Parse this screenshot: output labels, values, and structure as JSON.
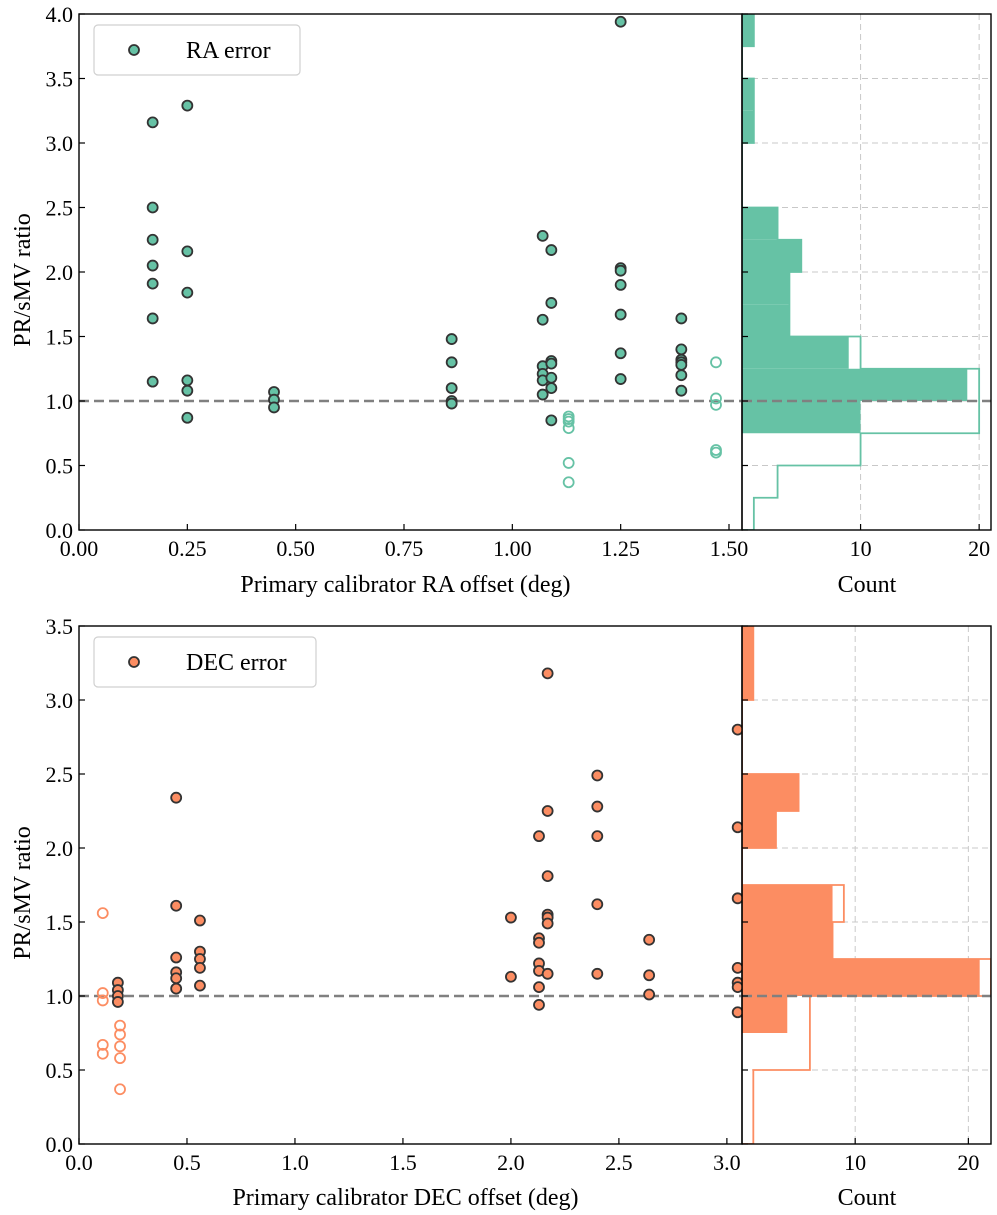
{
  "chart_data": [
    {
      "type": "scatter",
      "panel": "top",
      "xlabel": "Primary calibrator RA offset (deg)",
      "ylabel": "PR/sMV ratio",
      "xlim": [
        0.0,
        1.53
      ],
      "ylim": [
        0.0,
        4.0
      ],
      "xticks": [
        0.0,
        0.25,
        0.5,
        0.75,
        1.0,
        1.25,
        1.5
      ],
      "xtick_labels": [
        "0.00",
        "0.25",
        "0.50",
        "0.75",
        "1.00",
        "1.25",
        "1.50"
      ],
      "yticks": [
        0.0,
        0.5,
        1.0,
        1.5,
        2.0,
        2.5,
        3.0,
        3.5,
        4.0
      ],
      "ytick_labels": [
        "0.0",
        "0.5",
        "1.0",
        "1.5",
        "2.0",
        "2.5",
        "3.0",
        "3.5",
        "4.0"
      ],
      "reference_line": 1.0,
      "legend": {
        "label": "RA error",
        "position": "top-left"
      },
      "color": "#66c2a5",
      "edge_color": "#333333",
      "filled_points": [
        [
          0.17,
          3.16
        ],
        [
          0.17,
          2.5
        ],
        [
          0.17,
          2.25
        ],
        [
          0.17,
          2.05
        ],
        [
          0.17,
          1.91
        ],
        [
          0.17,
          1.64
        ],
        [
          0.17,
          1.15
        ],
        [
          0.25,
          3.29
        ],
        [
          0.25,
          2.16
        ],
        [
          0.25,
          1.84
        ],
        [
          0.25,
          1.16
        ],
        [
          0.25,
          1.08
        ],
        [
          0.25,
          0.87
        ],
        [
          0.45,
          1.07
        ],
        [
          0.45,
          1.01
        ],
        [
          0.45,
          0.95
        ],
        [
          0.86,
          1.48
        ],
        [
          0.86,
          1.3
        ],
        [
          0.86,
          1.1
        ],
        [
          0.86,
          1.0
        ],
        [
          0.86,
          0.98
        ],
        [
          1.07,
          2.28
        ],
        [
          1.07,
          1.63
        ],
        [
          1.07,
          1.27
        ],
        [
          1.07,
          1.21
        ],
        [
          1.07,
          1.16
        ],
        [
          1.07,
          1.05
        ],
        [
          1.09,
          2.17
        ],
        [
          1.09,
          1.76
        ],
        [
          1.09,
          1.31
        ],
        [
          1.09,
          1.29
        ],
        [
          1.09,
          1.18
        ],
        [
          1.09,
          1.1
        ],
        [
          1.09,
          0.85
        ],
        [
          1.25,
          3.94
        ],
        [
          1.25,
          2.03
        ],
        [
          1.25,
          2.01
        ],
        [
          1.25,
          1.9
        ],
        [
          1.25,
          1.67
        ],
        [
          1.25,
          1.37
        ],
        [
          1.25,
          1.17
        ],
        [
          1.39,
          1.64
        ],
        [
          1.39,
          1.4
        ],
        [
          1.39,
          1.32
        ],
        [
          1.39,
          1.3
        ],
        [
          1.39,
          1.28
        ],
        [
          1.39,
          1.2
        ],
        [
          1.39,
          1.08
        ]
      ],
      "open_points": [
        [
          1.13,
          0.88
        ],
        [
          1.13,
          0.86
        ],
        [
          1.13,
          0.84
        ],
        [
          1.13,
          0.79
        ],
        [
          1.13,
          0.52
        ],
        [
          1.13,
          0.37
        ],
        [
          1.47,
          1.3
        ],
        [
          1.47,
          1.02
        ],
        [
          1.47,
          0.97
        ],
        [
          1.47,
          0.62
        ],
        [
          1.47,
          0.6
        ]
      ],
      "histogram": {
        "orientation": "horizontal",
        "xlabel": "Count",
        "xlim": [
          0,
          21
        ],
        "xticks": [
          10,
          20
        ],
        "xtick_labels": [
          "10",
          "20"
        ],
        "bin_edges": [
          0.0,
          0.25,
          0.5,
          0.75,
          1.0,
          1.25,
          1.5,
          1.75,
          2.0,
          2.25,
          2.5,
          2.75,
          3.0,
          3.25,
          3.5,
          3.75,
          4.0
        ],
        "filled_counts": [
          0,
          0,
          0,
          10,
          19,
          9,
          4,
          4,
          5,
          3,
          0,
          0,
          1,
          1,
          0,
          1
        ],
        "total_counts": [
          1,
          3,
          10,
          20,
          20,
          10,
          4,
          4,
          5,
          3,
          0,
          0,
          1,
          1,
          0,
          1
        ]
      }
    },
    {
      "type": "scatter",
      "panel": "bottom",
      "xlabel": "Primary calibrator DEC offset (deg)",
      "ylabel": "PR/sMV ratio",
      "xlim": [
        0.0,
        3.07
      ],
      "ylim": [
        0.0,
        3.5
      ],
      "xticks": [
        0.0,
        0.5,
        1.0,
        1.5,
        2.0,
        2.5,
        3.0
      ],
      "xtick_labels": [
        "0.0",
        "0.5",
        "1.0",
        "1.5",
        "2.0",
        "2.5",
        "3.0"
      ],
      "yticks": [
        0.0,
        0.5,
        1.0,
        1.5,
        2.0,
        2.5,
        3.0,
        3.5
      ],
      "ytick_labels": [
        "0.0",
        "0.5",
        "1.0",
        "1.5",
        "2.0",
        "2.5",
        "3.0",
        "3.5"
      ],
      "reference_line": 1.0,
      "legend": {
        "label": "DEC error",
        "position": "top-left"
      },
      "color": "#fc8d62",
      "edge_color": "#333333",
      "filled_points": [
        [
          0.18,
          1.09
        ],
        [
          0.18,
          1.04
        ],
        [
          0.18,
          1.0
        ],
        [
          0.18,
          0.96
        ],
        [
          0.45,
          2.34
        ],
        [
          0.45,
          1.61
        ],
        [
          0.45,
          1.26
        ],
        [
          0.45,
          1.16
        ],
        [
          0.45,
          1.12
        ],
        [
          0.45,
          1.05
        ],
        [
          0.56,
          1.51
        ],
        [
          0.56,
          1.3
        ],
        [
          0.56,
          1.25
        ],
        [
          0.56,
          1.19
        ],
        [
          0.56,
          1.07
        ],
        [
          2.0,
          1.53
        ],
        [
          2.0,
          1.13
        ],
        [
          2.13,
          2.08
        ],
        [
          2.13,
          1.39
        ],
        [
          2.13,
          1.36
        ],
        [
          2.13,
          1.22
        ],
        [
          2.13,
          1.17
        ],
        [
          2.13,
          1.06
        ],
        [
          2.13,
          0.94
        ],
        [
          2.17,
          3.18
        ],
        [
          2.17,
          2.25
        ],
        [
          2.17,
          1.81
        ],
        [
          2.17,
          1.55
        ],
        [
          2.17,
          1.53
        ],
        [
          2.17,
          1.49
        ],
        [
          2.17,
          1.15
        ],
        [
          2.4,
          2.49
        ],
        [
          2.4,
          2.28
        ],
        [
          2.4,
          2.08
        ],
        [
          2.4,
          1.62
        ],
        [
          2.4,
          1.15
        ],
        [
          2.64,
          1.38
        ],
        [
          2.64,
          1.14
        ],
        [
          2.64,
          1.01
        ],
        [
          3.05,
          2.8
        ],
        [
          3.05,
          2.14
        ],
        [
          3.05,
          1.66
        ],
        [
          3.05,
          1.19
        ],
        [
          3.05,
          1.09
        ],
        [
          3.05,
          1.06
        ],
        [
          3.05,
          0.89
        ]
      ],
      "open_points": [
        [
          0.11,
          1.56
        ],
        [
          0.11,
          1.02
        ],
        [
          0.11,
          0.97
        ],
        [
          0.11,
          0.67
        ],
        [
          0.11,
          0.61
        ],
        [
          0.19,
          0.8
        ],
        [
          0.19,
          0.74
        ],
        [
          0.19,
          0.66
        ],
        [
          0.19,
          0.58
        ],
        [
          0.19,
          0.37
        ]
      ],
      "histogram": {
        "orientation": "horizontal",
        "xlabel": "Count",
        "xlim": [
          0,
          22
        ],
        "xticks": [
          10,
          20
        ],
        "xtick_labels": [
          "10",
          "20"
        ],
        "bin_edges": [
          0.0,
          0.25,
          0.5,
          0.75,
          1.0,
          1.25,
          1.5,
          1.75,
          2.0,
          2.25,
          2.5,
          2.75,
          3.0,
          3.25,
          3.5
        ],
        "filled_counts": [
          0,
          0,
          0,
          4,
          21,
          8,
          8,
          0,
          3,
          5,
          0,
          0,
          1,
          1
        ],
        "total_counts": [
          1,
          1,
          6,
          6,
          22,
          8,
          9,
          0,
          3,
          5,
          0,
          0,
          1,
          1
        ]
      }
    }
  ]
}
